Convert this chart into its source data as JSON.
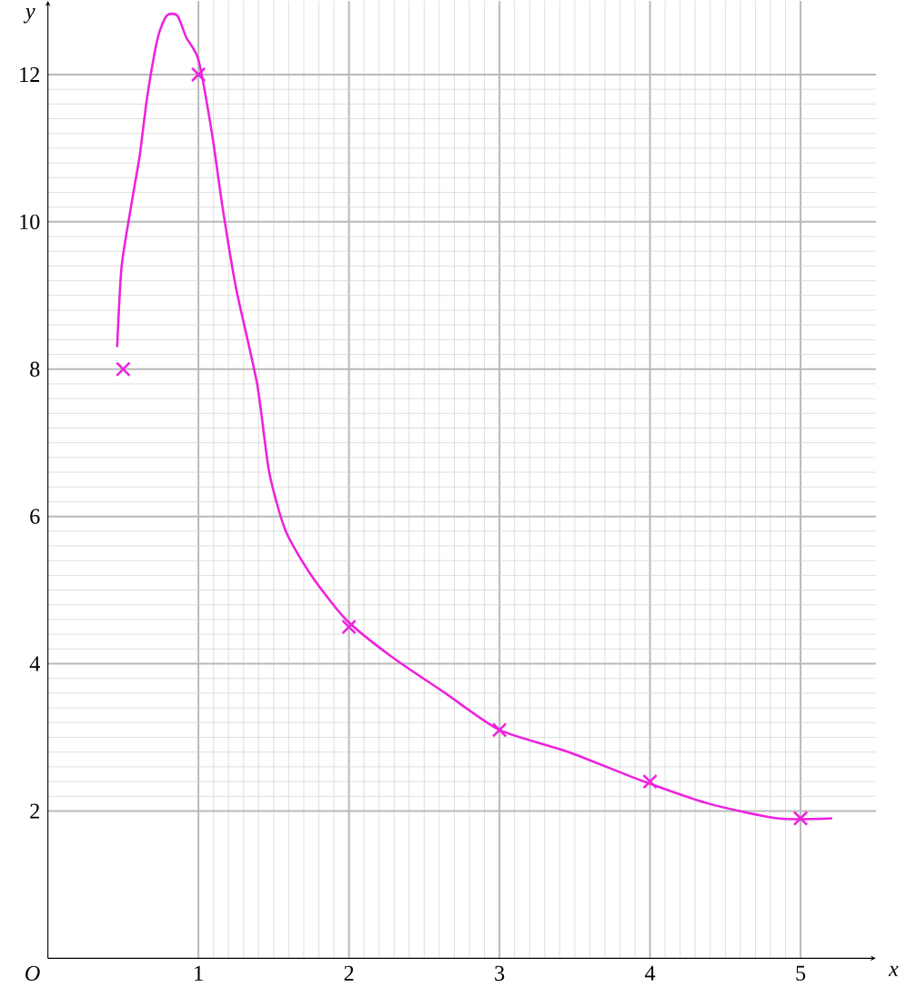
{
  "chart_data": {
    "type": "line",
    "xlabel": "x",
    "ylabel": "y",
    "annotations": [
      "O"
    ],
    "xlim": [
      0,
      5.5
    ],
    "ylim": [
      0,
      13
    ],
    "xticks": [
      1,
      2,
      3,
      4,
      5
    ],
    "yticks": [
      2,
      4,
      6,
      8,
      10,
      12
    ],
    "grid": true,
    "series": [
      {
        "color": "#ee22dd",
        "marker": "none",
        "x": [
          0.46,
          0.49,
          0.56,
          0.61,
          0.66,
          0.73,
          0.79,
          0.86,
          0.92,
          1.0,
          1.09,
          1.16,
          1.25,
          1.39,
          1.47,
          1.58,
          1.75,
          1.98,
          2.28,
          2.64,
          3.0,
          3.46,
          3.96,
          4.39,
          4.85,
          5.21
        ],
        "values": [
          8.3,
          9.4,
          10.3,
          10.9,
          11.7,
          12.5,
          12.8,
          12.8,
          12.5,
          12.2,
          11.2,
          10.2,
          9.1,
          7.8,
          6.6,
          5.8,
          5.2,
          4.6,
          4.1,
          3.6,
          3.1,
          2.8,
          2.4,
          2.1,
          1.9,
          1.9
        ]
      },
      {
        "type": "scatter",
        "color": "#ee22dd",
        "marker": "cross",
        "x": [
          0.5,
          1,
          2,
          3,
          4,
          5
        ],
        "values": [
          8.0,
          12.0,
          4.5,
          3.1,
          2.4,
          1.9
        ]
      }
    ]
  }
}
